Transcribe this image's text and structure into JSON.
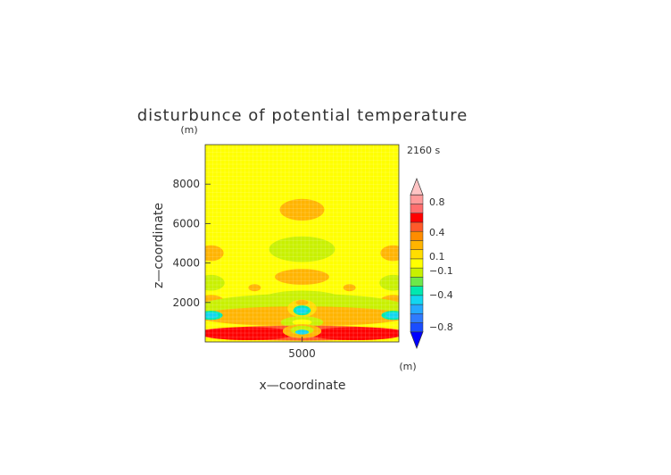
{
  "chart_data": {
    "type": "heatmap",
    "title": "disturbunce of potential temperature",
    "xlabel": "x—coordinate",
    "ylabel": "z—coordinate",
    "x_unit": "(m)",
    "y_unit": "(m)",
    "time_label": "2160 s",
    "xlim": [
      0,
      10000
    ],
    "ylim": [
      0,
      10000
    ],
    "x_ticks": [
      {
        "value": 5000,
        "label": "5000"
      }
    ],
    "y_ticks": [
      {
        "value": 2000,
        "label": "2000"
      },
      {
        "value": 4000,
        "label": "4000"
      },
      {
        "value": 6000,
        "label": "6000"
      },
      {
        "value": 8000,
        "label": "8000"
      }
    ],
    "colorbar": {
      "bins": [
        {
          "color": "#0000ff"
        },
        {
          "color": "#1a4dff"
        },
        {
          "color": "#2f7bff"
        },
        {
          "color": "#25a8ff"
        },
        {
          "color": "#12d6f0"
        },
        {
          "color": "#00e8b0"
        },
        {
          "color": "#6de84a"
        },
        {
          "color": "#c8f000"
        },
        {
          "color": "#ffff00"
        },
        {
          "color": "#ffdd00"
        },
        {
          "color": "#ffb400"
        },
        {
          "color": "#ff8c00"
        },
        {
          "color": "#ff5a2a"
        },
        {
          "color": "#ff0000"
        },
        {
          "color": "#ff6e6e"
        },
        {
          "color": "#ff9a9a"
        },
        {
          "color": "#ffc4c4"
        }
      ],
      "labels": [
        "0.8",
        "0.4",
        "0.1",
        "−0.1",
        "−0.4",
        "−0.8"
      ]
    },
    "field": {
      "background_color": "#ffff00",
      "regions": [
        {
          "x": 5000,
          "z": 6700,
          "rx": 1150,
          "rz": 550,
          "color": "#ffb400"
        },
        {
          "x": 5000,
          "z": 4700,
          "rx": 1700,
          "rz": 650,
          "color": "#c8f000"
        },
        {
          "x": 5000,
          "z": 3300,
          "rx": 1400,
          "rz": 400,
          "color": "#ffb400"
        },
        {
          "x": 300,
          "z": 4500,
          "rx": 650,
          "rz": 400,
          "color": "#ffb400"
        },
        {
          "x": 9700,
          "z": 4500,
          "rx": 650,
          "rz": 400,
          "color": "#ffb400"
        },
        {
          "x": 300,
          "z": 3000,
          "rx": 700,
          "rz": 400,
          "color": "#c8f000"
        },
        {
          "x": 9700,
          "z": 3000,
          "rx": 700,
          "rz": 400,
          "color": "#c8f000"
        },
        {
          "x": 2550,
          "z": 2750,
          "rx": 320,
          "rz": 180,
          "color": "#ffb400"
        },
        {
          "x": 7450,
          "z": 2750,
          "rx": 320,
          "rz": 180,
          "color": "#ffb400"
        },
        {
          "x": 300,
          "z": 2100,
          "rx": 650,
          "rz": 280,
          "color": "#ffb400"
        },
        {
          "x": 9700,
          "z": 2100,
          "rx": 650,
          "rz": 280,
          "color": "#ffb400"
        },
        {
          "x": 5000,
          "z": 1700,
          "rx": 5500,
          "rz": 750,
          "color": "#c8f000"
        },
        {
          "x": 5000,
          "z": 2150,
          "rx": 2100,
          "rz": 450,
          "color": "#c8f000"
        },
        {
          "x": 5000,
          "z": 1300,
          "rx": 5500,
          "rz": 500,
          "color": "#ffb400"
        },
        {
          "x": 300,
          "z": 1350,
          "rx": 600,
          "rz": 230,
          "color": "#00e8b0"
        },
        {
          "x": 9700,
          "z": 1350,
          "rx": 600,
          "rz": 230,
          "color": "#00e8b0"
        },
        {
          "x": 300,
          "z": 1350,
          "rx": 380,
          "rz": 150,
          "color": "#12d6f0"
        },
        {
          "x": 9700,
          "z": 1350,
          "rx": 380,
          "rz": 150,
          "color": "#12d6f0"
        },
        {
          "x": 5000,
          "z": 1700,
          "rx": 750,
          "rz": 450,
          "color": "#ffdd00"
        },
        {
          "x": 5000,
          "z": 1600,
          "rx": 450,
          "rz": 250,
          "color": "#00e8b0"
        },
        {
          "x": 5000,
          "z": 1600,
          "rx": 300,
          "rz": 150,
          "color": "#12d6f0"
        },
        {
          "x": 5000,
          "z": 2000,
          "rx": 320,
          "rz": 130,
          "color": "#ffb400"
        },
        {
          "x": 5000,
          "z": 1000,
          "rx": 1100,
          "rz": 300,
          "color": "#c8f000"
        },
        {
          "x": 5000,
          "z": 1000,
          "rx": 500,
          "rz": 150,
          "color": "#ffff00"
        },
        {
          "x": 5000,
          "z": 450,
          "rx": 5700,
          "rz": 380,
          "color": "#ff5a2a"
        },
        {
          "x": 2200,
          "z": 420,
          "rx": 2500,
          "rz": 330,
          "color": "#ff0000"
        },
        {
          "x": 7800,
          "z": 420,
          "rx": 2500,
          "rz": 330,
          "color": "#ff0000"
        },
        {
          "x": 5000,
          "z": 550,
          "rx": 1000,
          "rz": 350,
          "color": "#ffb400"
        },
        {
          "x": 5000,
          "z": 600,
          "rx": 600,
          "rz": 220,
          "color": "#c8f000"
        },
        {
          "x": 5000,
          "z": 500,
          "rx": 350,
          "rz": 120,
          "color": "#12d6f0"
        }
      ]
    }
  }
}
